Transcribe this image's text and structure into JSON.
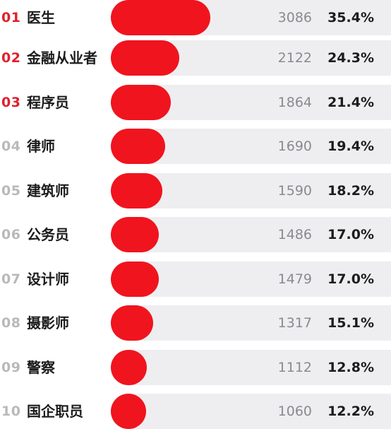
{
  "chart_data": {
    "type": "bar",
    "orientation": "horizontal",
    "categories": [
      "医生",
      "金融从业者",
      "程序员",
      "律师",
      "建筑师",
      "公务员",
      "设计师",
      "摄影师",
      "警察",
      "国企职员"
    ],
    "ranks": [
      "01",
      "02",
      "03",
      "04",
      "05",
      "06",
      "07",
      "08",
      "09",
      "10"
    ],
    "values": [
      3086,
      2122,
      1864,
      1690,
      1590,
      1486,
      1479,
      1317,
      1112,
      1060
    ],
    "percent_labels": [
      "35.4%",
      "24.3%",
      "21.4%",
      "19.4%",
      "18.2%",
      "17.0%",
      "17.0%",
      "15.1%",
      "12.8%",
      "12.2%"
    ],
    "highlight_top": 3,
    "colors": {
      "bar": "#f0141e",
      "track": "#eeeef0",
      "rank_highlight": "#e0202c",
      "rank_normal": "#b9b9b9",
      "label": "#1c1c1c",
      "count": "#8a8a8f"
    },
    "grid": false
  }
}
